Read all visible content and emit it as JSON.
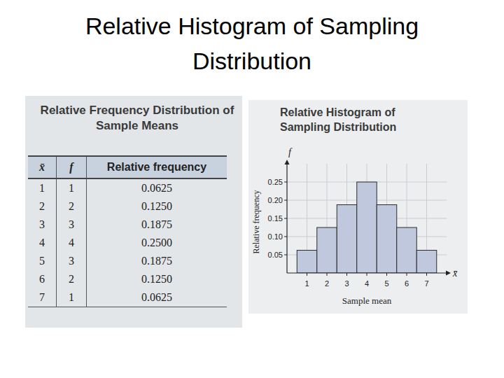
{
  "title": "Relative Histogram of Sampling Distribution",
  "table": {
    "title": "Relative Frequency Distribution of Sample Means",
    "header": [
      "x̄",
      "f",
      "Relative frequency"
    ],
    "rows": [
      [
        1,
        1,
        "0.0625"
      ],
      [
        2,
        2,
        "0.1250"
      ],
      [
        3,
        3,
        "0.1875"
      ],
      [
        4,
        4,
        "0.2500"
      ],
      [
        5,
        3,
        "0.1875"
      ],
      [
        6,
        2,
        "0.1250"
      ],
      [
        7,
        1,
        "0.0625"
      ]
    ]
  },
  "chart_data": {
    "type": "histogram",
    "title": "Relative Histogram of Sampling Distribution",
    "xlabel": "Sample mean",
    "ylabel": "Relative frequency",
    "x_axis_symbol": "x̄",
    "y_axis_symbol": "f",
    "bins": [
      0.5,
      1.5,
      2.5,
      3.5,
      4.5,
      5.5,
      6.5,
      7.5
    ],
    "values": [
      0.0625,
      0.125,
      0.1875,
      0.25,
      0.1875,
      0.125,
      0.0625
    ],
    "color": "#bfc8dc",
    "xlim": [
      0,
      8
    ],
    "xticks": [
      1,
      2,
      3,
      4,
      5,
      6,
      7
    ],
    "ylim": [
      0,
      0.3
    ],
    "yticks": [
      0.05,
      {
        "value": 0.1,
        "label": "0.10"
      },
      0.15,
      {
        "value": 0.2,
        "label": "0.20"
      },
      0.25
    ],
    "grid": true
  }
}
